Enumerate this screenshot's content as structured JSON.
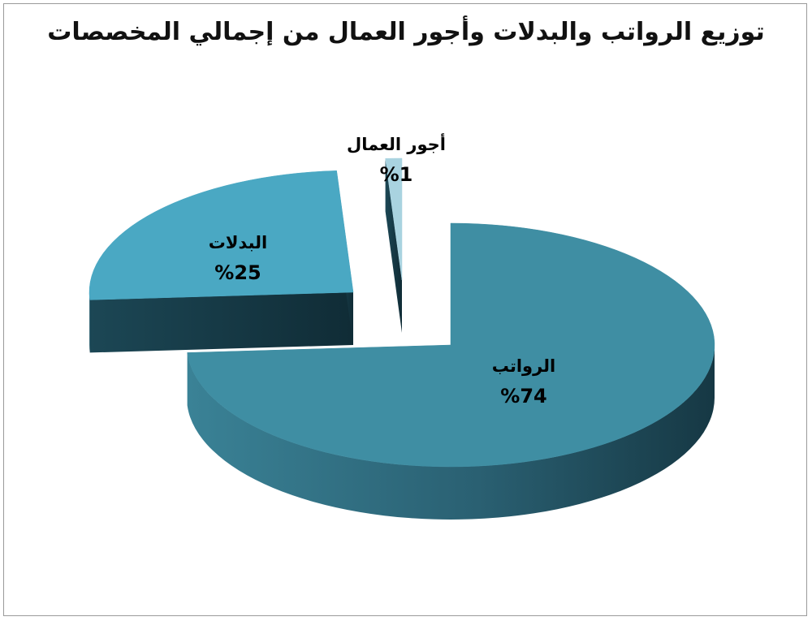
{
  "chart_data": {
    "type": "pie",
    "style": "3d-exploded",
    "title": "توزيع الرواتب والبدلات وأجور العمال من إجمالي المخصصات",
    "slices": [
      {
        "label": "الرواتب",
        "value": 74,
        "value_label": "%74",
        "color": "#3f8ea3"
      },
      {
        "label": "البدلات",
        "value": 25,
        "value_label": "%25",
        "color": "#4aa8c3"
      },
      {
        "label": "أجور العمال",
        "value": 1,
        "value_label": "%1",
        "color": "#a9d3e0"
      }
    ]
  }
}
